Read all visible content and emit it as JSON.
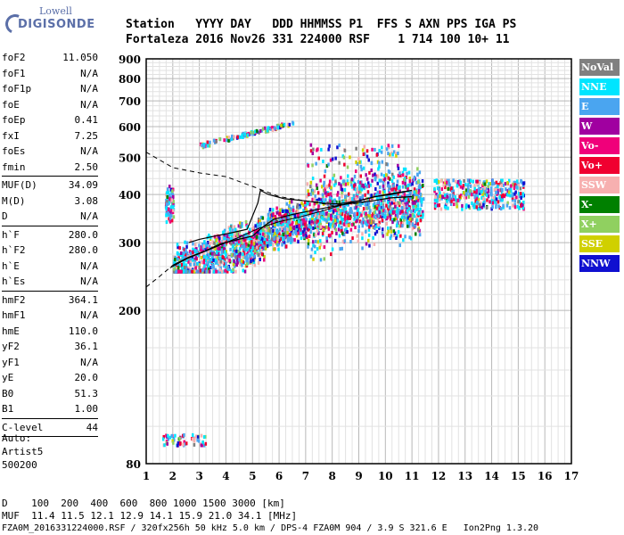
{
  "logo": {
    "line1": "Lowell",
    "line2": "DIGISONDE"
  },
  "header": {
    "row1": "Station   YYYY DAY   DDD HHMMSS P1  FFS S AXN PPS IGA PS",
    "row2": "Fortaleza 2016 Nov26 331 224000 RSF    1 714 100 10+ 11"
  },
  "params": [
    [
      {
        "k": "foF2",
        "v": "11.050"
      },
      {
        "k": "foF1",
        "v": "N/A"
      },
      {
        "k": "foF1p",
        "v": "N/A"
      },
      {
        "k": "foE",
        "v": "N/A"
      },
      {
        "k": "foEp",
        "v": "0.41"
      },
      {
        "k": "fxI",
        "v": "7.25"
      },
      {
        "k": "foEs",
        "v": "N/A"
      },
      {
        "k": "fmin",
        "v": "2.50"
      }
    ],
    [
      {
        "k": "MUF(D)",
        "v": "34.09"
      },
      {
        "k": "M(D)",
        "v": "3.08"
      },
      {
        "k": "D",
        "v": "N/A"
      }
    ],
    [
      {
        "k": "h`F",
        "v": "280.0"
      },
      {
        "k": "h`F2",
        "v": "280.0"
      },
      {
        "k": "h`E",
        "v": "N/A"
      },
      {
        "k": "h`Es",
        "v": "N/A"
      }
    ],
    [
      {
        "k": "hmF2",
        "v": "364.1"
      },
      {
        "k": "hmF1",
        "v": "N/A"
      },
      {
        "k": "hmE",
        "v": "110.0"
      },
      {
        "k": "yF2",
        "v": "36.1"
      },
      {
        "k": "yF1",
        "v": "N/A"
      },
      {
        "k": "yE",
        "v": "20.0"
      },
      {
        "k": "B0",
        "v": "51.3"
      },
      {
        "k": "B1",
        "v": "1.00"
      }
    ],
    [
      {
        "k": "C-level",
        "v": "44"
      }
    ]
  ],
  "auto": {
    "l1": "Auto:",
    "l2": "Artist5",
    "l3": "500200"
  },
  "footer": {
    "d_row": "D    100  200  400  600  800 1000 1500 3000 [km]",
    "muf_row": "MUF  11.4 11.5 12.1 12.9 14.1 15.9 21.0 34.1 [MHz]",
    "file_row": "FZA0M_2016331224000.RSF / 320fx256h 50 kHz 5.0 km / DPS-4 FZA0M 904 / 3.9 S 321.6 E   Ion2Png 1.3.20"
  },
  "legend": [
    {
      "label": "NoVal",
      "color": "#808080"
    },
    {
      "label": "NNE",
      "color": "#00e5ff"
    },
    {
      "label": "E",
      "color": "#4aa5f0"
    },
    {
      "label": "W",
      "color": "#a000a0"
    },
    {
      "label": "Vo-",
      "color": "#f0007a"
    },
    {
      "label": "Vo+",
      "color": "#f00030"
    },
    {
      "label": "SSW",
      "color": "#f7b0b0"
    },
    {
      "label": "X-",
      "color": "#008000"
    },
    {
      "label": "X+",
      "color": "#90d060"
    },
    {
      "label": "SSE",
      "color": "#d0d000"
    },
    {
      "label": "NNW",
      "color": "#1010d0"
    }
  ],
  "chart_data": {
    "type": "scatter",
    "xlim": [
      1,
      17
    ],
    "ylim": [
      80,
      900
    ],
    "y_scale": "log",
    "x_ticks": [
      1,
      2,
      3,
      4,
      5,
      6,
      7,
      8,
      9,
      10,
      11,
      12,
      13,
      14,
      15,
      16,
      17
    ],
    "x_tick_labels": [
      "1",
      "2",
      "3",
      "4",
      "5",
      "6",
      "7",
      "8",
      "9",
      "10",
      "11",
      "12",
      "13",
      "14",
      "15",
      "16",
      "17"
    ],
    "y_ticks": [
      80,
      200,
      300,
      400,
      500,
      600,
      700,
      800,
      900
    ],
    "y_tick_labels": [
      "80",
      "200",
      "300",
      "400",
      "500",
      "600",
      "700",
      "800",
      "900"
    ],
    "grid": true,
    "profile_solid": {
      "x": [
        1.9,
        2.5,
        3.5,
        4.5,
        5.3,
        6.0,
        6.8,
        7.6,
        8.5,
        9.3,
        10.0,
        10.6,
        11.0
      ],
      "y": [
        258,
        272,
        290,
        310,
        328,
        340,
        350,
        362,
        378,
        390,
        400,
        406,
        410
      ]
    },
    "profile_dashed": {
      "x": [
        1.0,
        2.0,
        3.0,
        4.0,
        5.0,
        6.0,
        7.0,
        8.0,
        9.0,
        10.0
      ],
      "y": [
        515,
        470,
        455,
        445,
        420,
        395,
        385,
        375,
        380,
        390
      ]
    },
    "profile_dashed_low": {
      "x": [
        1.0,
        1.5,
        2.0
      ],
      "y": [
        230,
        245,
        262
      ]
    },
    "trace_o_mode": {
      "x": [
        2.0,
        2.6,
        3.2,
        3.8,
        4.4,
        5.0,
        5.4,
        5.8,
        6.5,
        7.2,
        8.0,
        8.8,
        9.5,
        10.2,
        11.0
      ],
      "y": [
        262,
        275,
        285,
        298,
        305,
        312,
        330,
        345,
        355,
        363,
        372,
        380,
        385,
        392,
        395
      ]
    },
    "trace_x_mode": {
      "x": [
        2.6,
        3.0,
        3.6,
        4.2,
        4.8,
        5.2,
        5.3,
        5.6,
        6.2,
        7.0,
        7.6,
        8.2,
        9.0,
        9.6,
        10.2,
        11.0
      ],
      "y": [
        300,
        306,
        312,
        318,
        325,
        380,
        410,
        400,
        390,
        385,
        380,
        378,
        385,
        395,
        400,
        410
      ]
    },
    "echo_clusters": [
      {
        "x0": 1.7,
        "x1": 11.4,
        "y0": 255,
        "y1": 560,
        "count": 2600
      },
      {
        "x0": 11.8,
        "x1": 15.2,
        "y0": 370,
        "y1": 440,
        "count": 380
      },
      {
        "x0": 3.0,
        "x1": 6.6,
        "y0": 535,
        "y1": 640,
        "count": 110
      },
      {
        "x0": 1.6,
        "x1": 3.2,
        "y0": 90,
        "y1": 96,
        "count": 60
      }
    ]
  }
}
